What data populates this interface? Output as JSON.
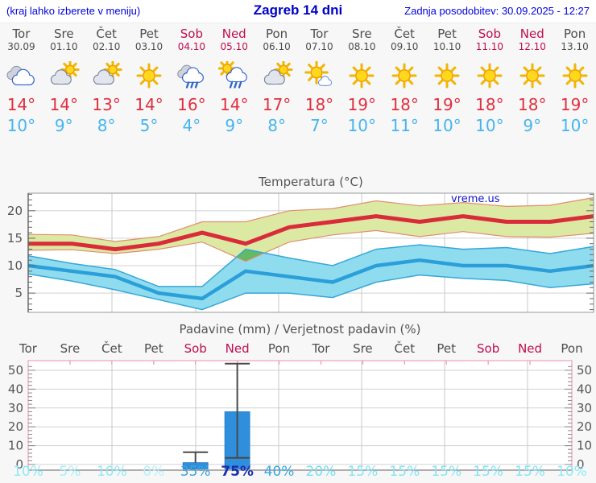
{
  "header": {
    "hint": "(kraj lahko izberete v meniju)",
    "title": "Zagreb 14 dni",
    "updated": "Zadnja posodobitev: 30.09.2025 - 12:27"
  },
  "days": [
    {
      "name": "Tor",
      "date": "30.09",
      "weekend": false,
      "icon": "cloudy",
      "tmax": "14",
      "tmin": "10",
      "prob": "10%",
      "prob_color": "#8fe9f6"
    },
    {
      "name": "Sre",
      "date": "01.10",
      "weekend": false,
      "icon": "sun-cloud",
      "tmax": "14",
      "tmin": "9",
      "prob": "5%",
      "prob_color": "#a8eef9"
    },
    {
      "name": "Čet",
      "date": "02.10",
      "weekend": false,
      "icon": "sun-cloud",
      "tmax": "13",
      "tmin": "8",
      "prob": "10%",
      "prob_color": "#8fe9f6"
    },
    {
      "name": "Pet",
      "date": "03.10",
      "weekend": false,
      "icon": "sun",
      "tmax": "14",
      "tmin": "5",
      "prob": "0%",
      "prob_color": "#b4f1fa"
    },
    {
      "name": "Sob",
      "date": "04.10",
      "weekend": true,
      "icon": "rain",
      "tmax": "16",
      "tmin": "4",
      "prob": "35%",
      "prob_color": "#3aa3da"
    },
    {
      "name": "Ned",
      "date": "05.10",
      "weekend": true,
      "icon": "sun-rain",
      "tmax": "14",
      "tmin": "9",
      "prob": "75%",
      "prob_color": "#1b2fae"
    },
    {
      "name": "Pon",
      "date": "06.10",
      "weekend": false,
      "icon": "sun-cloud",
      "tmax": "17",
      "tmin": "8",
      "prob": "40%",
      "prob_color": "#36a9e0"
    },
    {
      "name": "Tor",
      "date": "07.10",
      "weekend": false,
      "icon": "sun-small-cloud",
      "tmax": "18",
      "tmin": "7",
      "prob": "20%",
      "prob_color": "#72dff2"
    },
    {
      "name": "Sre",
      "date": "08.10",
      "weekend": false,
      "icon": "sun",
      "tmax": "19",
      "tmin": "10",
      "prob": "15%",
      "prob_color": "#83e5f4"
    },
    {
      "name": "Čet",
      "date": "09.10",
      "weekend": false,
      "icon": "sun",
      "tmax": "18",
      "tmin": "11",
      "prob": "15%",
      "prob_color": "#83e5f4"
    },
    {
      "name": "Pet",
      "date": "10.10",
      "weekend": false,
      "icon": "sun",
      "tmax": "19",
      "tmin": "10",
      "prob": "15%",
      "prob_color": "#83e5f4"
    },
    {
      "name": "Sob",
      "date": "11.10",
      "weekend": true,
      "icon": "sun",
      "tmax": "18",
      "tmin": "10",
      "prob": "15%",
      "prob_color": "#83e5f4"
    },
    {
      "name": "Ned",
      "date": "12.10",
      "weekend": true,
      "icon": "sun",
      "tmax": "18",
      "tmin": "9",
      "prob": "15%",
      "prob_color": "#83e5f4"
    },
    {
      "name": "Pon",
      "date": "13.10",
      "weekend": false,
      "icon": "sun",
      "tmax": "19",
      "tmin": "10",
      "prob": "10%",
      "prob_color": "#8fe9f6"
    }
  ],
  "temp_chart": {
    "title": "Temperatura (°C)",
    "watermark": "vreme.us"
  },
  "precip_chart": {
    "title": "Padavine (mm) / Verjetnost padavin (%)"
  },
  "colors": {
    "tmax_line": "#d92b3a",
    "tmax_band_fill": "#dce9a2",
    "tmax_band_border": "#e08e70",
    "tmin_line": "#2b9fd9",
    "tmin_band_fill": "#90dcef",
    "tmin_band_border": "#35a7d8",
    "overlap_green": "#62ba62",
    "bar_fill": "#2f8fdd",
    "bar_stroke": "#2277c8",
    "whisker": "#4a4a4a",
    "weekend_text": "#bf0d4e",
    "weekday_text": "#4d4d4d",
    "axis_text": "#555555",
    "precip_frame_pink": "#f0a3b5"
  },
  "chart_data": [
    {
      "type": "line",
      "title": "Temperatura (°C)",
      "categories": [
        "Tor 30.09",
        "Sre 01.10",
        "Čet 02.10",
        "Pet 03.10",
        "Sob 04.10",
        "Ned 05.10",
        "Pon 06.10",
        "Tor 07.10",
        "Sre 08.10",
        "Čet 09.10",
        "Pet 10.10",
        "Sob 11.10",
        "Ned 12.10",
        "Pon 13.10"
      ],
      "ylabel": "Temperatura (°C)",
      "yticks": [
        5,
        10,
        15,
        20
      ],
      "ylim": [
        1.5,
        23.2
      ],
      "legend": "none",
      "grid": true,
      "series": [
        {
          "name": "max_temp",
          "values": [
            14,
            14,
            13,
            14,
            16,
            14,
            17,
            18,
            19,
            18,
            19,
            18,
            18,
            19
          ]
        },
        {
          "name": "max_temp_band_upper",
          "values": [
            15.7,
            15.6,
            14.4,
            15.3,
            18.0,
            18.0,
            20.0,
            20.4,
            21.8,
            20.9,
            21.5,
            20.8,
            21.0,
            22.4
          ]
        },
        {
          "name": "max_temp_band_lower",
          "values": [
            12.8,
            12.9,
            12.2,
            13.0,
            14.3,
            10.8,
            14.3,
            15.6,
            16.4,
            15.3,
            16.2,
            15.3,
            15.2,
            15.9
          ]
        },
        {
          "name": "min_temp",
          "values": [
            10,
            9,
            8,
            5,
            4,
            9,
            8,
            7,
            10,
            11,
            10,
            10,
            9,
            10
          ]
        },
        {
          "name": "min_temp_band_upper",
          "values": [
            11.8,
            10.4,
            9.3,
            6.2,
            6.2,
            13.0,
            11.4,
            10.0,
            13.0,
            13.8,
            13.0,
            13.3,
            12.2,
            13.5
          ]
        },
        {
          "name": "min_temp_band_lower",
          "values": [
            8.5,
            7.2,
            5.6,
            3.8,
            2.0,
            5.0,
            5.0,
            4.2,
            7.0,
            8.3,
            7.7,
            7.3,
            6.0,
            6.7
          ]
        }
      ],
      "annotations": [
        "vreme.us"
      ]
    },
    {
      "type": "bar",
      "title": "Padavine (mm) / Verjetnost padavin (%)",
      "categories": [
        "Tor",
        "Sre",
        "Čet",
        "Pet",
        "Sob",
        "Ned",
        "Pon",
        "Tor",
        "Sre",
        "Čet",
        "Pet",
        "Sob",
        "Ned",
        "Pon"
      ],
      "values": [
        0,
        0,
        0,
        0,
        1,
        28,
        0,
        0,
        0,
        0,
        0,
        0,
        0,
        0
      ],
      "bars": [
        {
          "index": 4,
          "day": "Sob",
          "amount": 1,
          "whisker_max": 6.5
        },
        {
          "index": 5,
          "day": "Ned",
          "amount": 28,
          "whisker_max": 53.5,
          "whisker_min": 3.5
        }
      ],
      "probabilities": [
        "10%",
        "5%",
        "10%",
        "0%",
        "35%",
        "75%",
        "40%",
        "20%",
        "15%",
        "15%",
        "15%",
        "15%",
        "15%",
        "10%"
      ],
      "yticks": [
        0,
        10,
        20,
        30,
        40,
        50
      ],
      "ylim": [
        0,
        50
      ],
      "grid": true
    }
  ]
}
